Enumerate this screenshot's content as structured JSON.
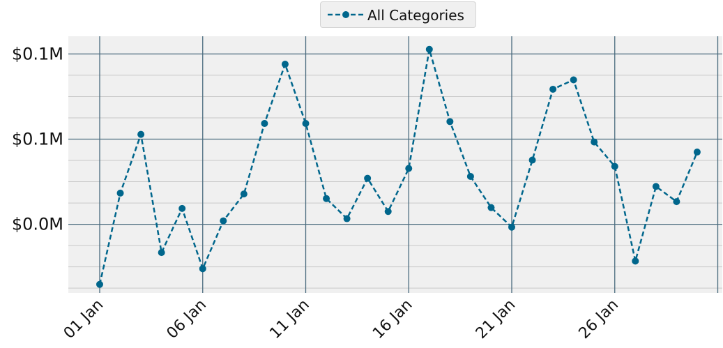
{
  "chart_data": {
    "type": "line",
    "title": "",
    "xlabel": "",
    "ylabel": "",
    "x": [
      "2024-01-01",
      "2024-01-02",
      "2024-01-03",
      "2024-01-04",
      "2024-01-05",
      "2024-01-06",
      "2024-01-07",
      "2024-01-08",
      "2024-01-09",
      "2024-01-10",
      "2024-01-11",
      "2024-01-12",
      "2024-01-13",
      "2024-01-14",
      "2024-01-15",
      "2024-01-16",
      "2024-01-17",
      "2024-01-18",
      "2024-01-19",
      "2024-01-20",
      "2024-01-21",
      "2024-01-22",
      "2024-01-23",
      "2024-01-24",
      "2024-01-25",
      "2024-01-26",
      "2024-01-27",
      "2024-01-28",
      "2024-01-29",
      "2024-01-30"
    ],
    "x_tick_labels": [
      "01 Jan",
      "06 Jan",
      "11 Jan",
      "16 Jan",
      "21 Jan",
      "26 Jan"
    ],
    "y_tick_labels": [
      "$0.0M",
      "$0.1M",
      "$0.1M"
    ],
    "y_ticks": [
      0,
      0.05,
      0.1
    ],
    "ylim": [
      -0.0403,
      0.1104
    ],
    "series": [
      {
        "name": "All Categories",
        "color": "#00668c",
        "line_style": "dashed",
        "marker": "circle",
        "values": [
          -0.0353,
          0.0183,
          0.0528,
          -0.0166,
          0.0093,
          -0.0261,
          0.002,
          0.0178,
          0.0592,
          0.094,
          0.0592,
          0.0151,
          0.0033,
          0.027,
          0.0075,
          0.0328,
          0.1027,
          0.0603,
          0.0281,
          0.0098,
          -0.0017,
          0.0377,
          0.0793,
          0.0848,
          0.0483,
          0.034,
          -0.0216,
          0.0222,
          0.0133,
          0.0424
        ]
      }
    ],
    "grid": true,
    "legend": "top-center"
  }
}
